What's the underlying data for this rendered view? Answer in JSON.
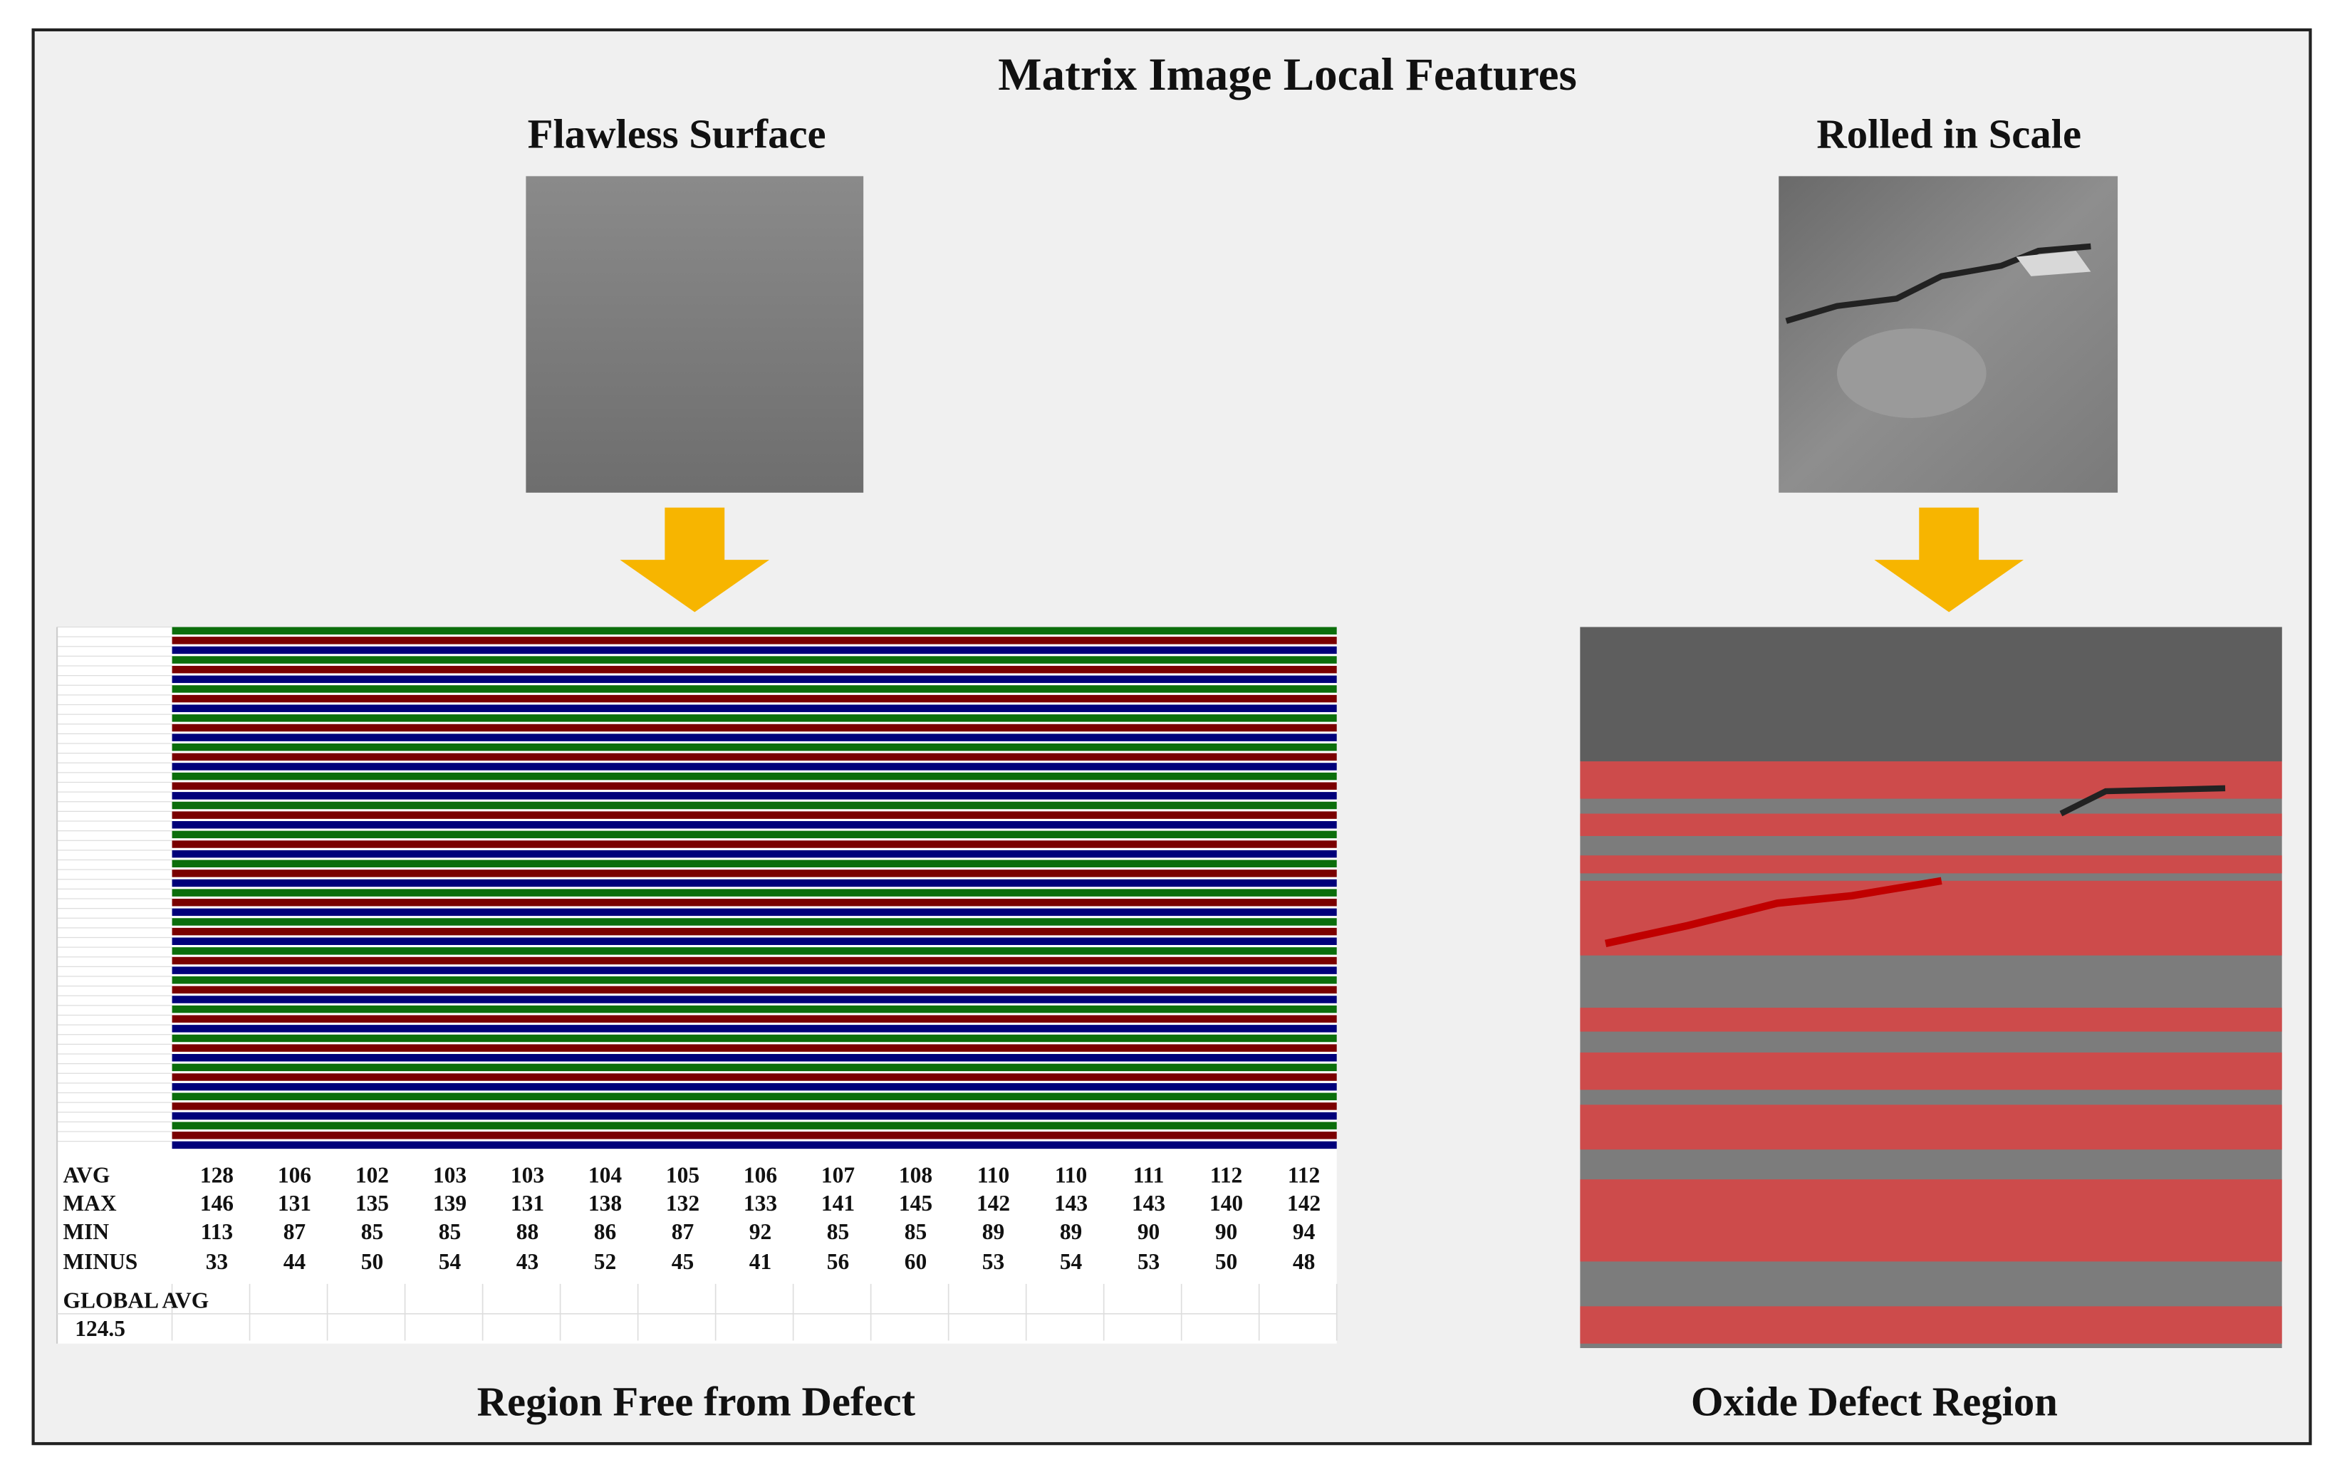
{
  "title": "Matrix Image Local Features",
  "panels": [
    {
      "label": "Flawless Surface",
      "caption": "Region Free from Defect"
    },
    {
      "label": "Rolled in Scale",
      "caption": "Oxide Defect Region"
    }
  ],
  "table": {
    "rows": [
      {
        "label": "AVG",
        "values": [
          128,
          106,
          102,
          103,
          103,
          104,
          105,
          106,
          107,
          108,
          110,
          110,
          111,
          112,
          112
        ]
      },
      {
        "label": "MAX",
        "values": [
          146,
          131,
          135,
          139,
          131,
          138,
          132,
          133,
          141,
          145,
          142,
          143,
          143,
          140,
          142
        ]
      },
      {
        "label": "MIN",
        "values": [
          113,
          87,
          85,
          85,
          88,
          86,
          87,
          92,
          85,
          85,
          89,
          89,
          90,
          90,
          94
        ]
      },
      {
        "label": "MINUS",
        "values": [
          33,
          44,
          50,
          54,
          43,
          52,
          45,
          41,
          56,
          60,
          53,
          54,
          53,
          50,
          48
        ]
      }
    ],
    "global_label": "GLOBAL AVG",
    "global_value": 124.5
  }
}
